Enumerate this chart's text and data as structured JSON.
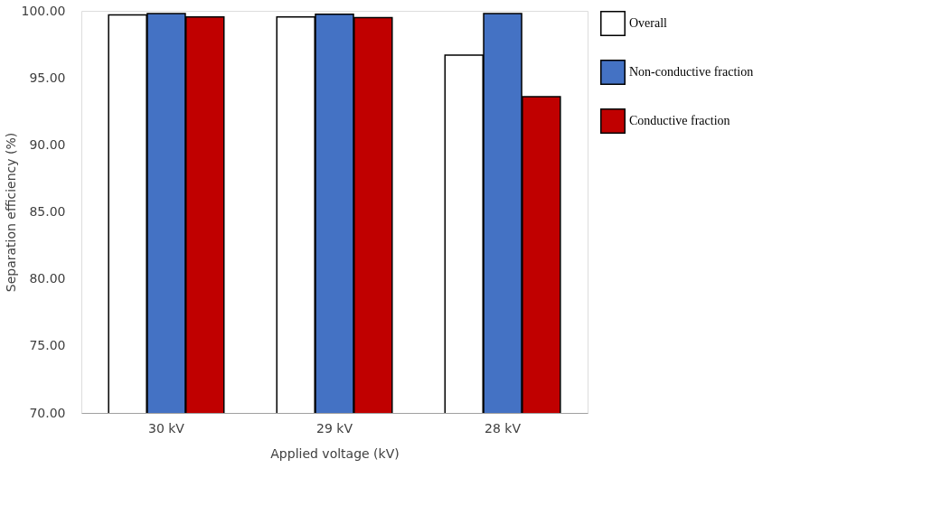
{
  "chart_data": {
    "type": "bar",
    "xlabel": "Applied voltage (kV)",
    "ylabel": "Separation efficiency  (%)",
    "categories": [
      "30 kV",
      "29 kV",
      "28 kV"
    ],
    "series": [
      {
        "name": "Overall",
        "color": "#ffffff",
        "values": [
          99.7,
          99.55,
          96.7
        ]
      },
      {
        "name": "Non-conductive fraction",
        "color": "#4472c4",
        "values": [
          99.8,
          99.75,
          99.8
        ]
      },
      {
        "name": "Conductive fraction",
        "color": "#c00000",
        "values": [
          99.55,
          99.5,
          93.6
        ]
      }
    ],
    "ylim": [
      70,
      100
    ],
    "yticks": [
      {
        "value": 70,
        "label": "70.00"
      },
      {
        "value": 75,
        "label": "75.00"
      },
      {
        "value": 80,
        "label": "80.00"
      },
      {
        "value": 85,
        "label": "85.00"
      },
      {
        "value": 90,
        "label": "90.00"
      },
      {
        "value": 95,
        "label": "95.00"
      },
      {
        "value": 100,
        "label": "100.00"
      }
    ],
    "grid": false,
    "legend": "right"
  }
}
